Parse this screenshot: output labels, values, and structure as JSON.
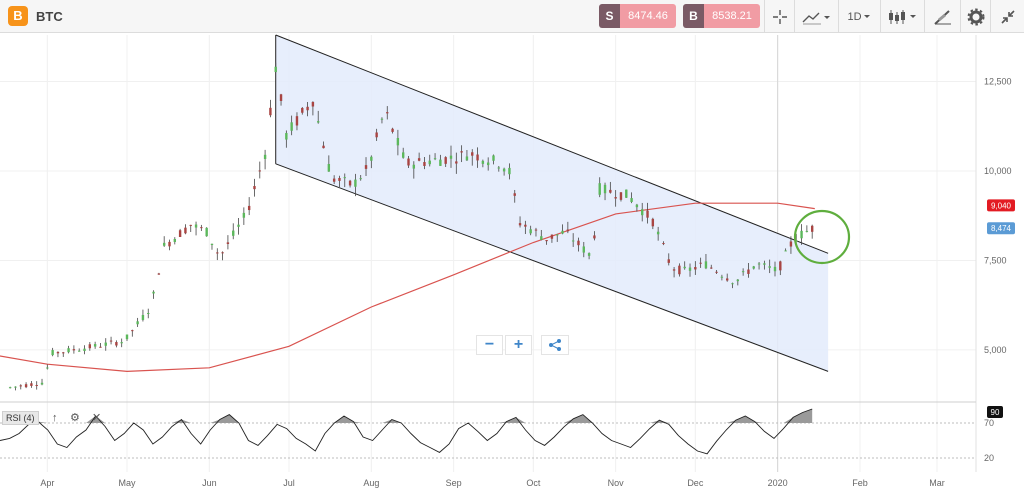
{
  "header": {
    "symbol": "BTC",
    "logo_glyph": "B",
    "sell_label": "S",
    "sell_price": "8474.46",
    "buy_label": "B",
    "buy_price": "8538.21",
    "interval": "1D",
    "icons": [
      "crosshair-icon",
      "line-chart-icon",
      "candlestick-icon",
      "drawing-tools-icon",
      "gear-icon",
      "collapse-icon"
    ]
  },
  "chart_controls": {
    "zoom_out": "−",
    "zoom_in": "+",
    "share_icon": "share-icon"
  },
  "rsi": {
    "label": "RSI (4)",
    "controls": [
      "↑",
      "⚙",
      "✕"
    ],
    "current_label": "90",
    "levels": [
      70,
      20
    ]
  },
  "colors": {
    "sell": "#7a5a65",
    "sell_price_bg": "#f19ca4",
    "up_candle": "#5cb85c",
    "down_candle": "#a94442",
    "ma_line": "#d9534f",
    "channel_fill": "#e3ebfb",
    "circle": "#5fae3e",
    "price_badge": "#5b9bd5",
    "ma_badge": "#e31b23"
  },
  "chart_data": {
    "type": "candlestick",
    "x_ticks": [
      "Apr",
      "May",
      "Jun",
      "Jul",
      "Aug",
      "Sep",
      "Oct",
      "Nov",
      "Dec",
      "2020",
      "Feb",
      "Mar"
    ],
    "y_ticks": [
      "12,500",
      "10,000",
      "7,500",
      "5,000"
    ],
    "ylim": [
      3600,
      13800
    ],
    "current_price_label": "8,474",
    "ma_label": "9,040",
    "price_path": [
      [
        "2019-03-18",
        3950
      ],
      [
        "2019-03-31",
        4100
      ],
      [
        "2019-04-02",
        4900
      ],
      [
        "2019-04-15",
        5050
      ],
      [
        "2019-04-30",
        5250
      ],
      [
        "2019-05-10",
        6200
      ],
      [
        "2019-05-15",
        7900
      ],
      [
        "2019-05-25",
        8500
      ],
      [
        "2019-05-31",
        8300
      ],
      [
        "2019-06-05",
        7600
      ],
      [
        "2019-06-15",
        8800
      ],
      [
        "2019-06-22",
        10500
      ],
      [
        "2019-06-26",
        12900
      ],
      [
        "2019-06-30",
        11000
      ],
      [
        "2019-07-10",
        12000
      ],
      [
        "2019-07-17",
        9800
      ],
      [
        "2019-07-25",
        9600
      ],
      [
        "2019-07-31",
        10100
      ],
      [
        "2019-08-06",
        11700
      ],
      [
        "2019-08-14",
        10200
      ],
      [
        "2019-08-25",
        10300
      ],
      [
        "2019-09-03",
        10400
      ],
      [
        "2019-09-07",
        10500
      ],
      [
        "2019-09-19",
        10200
      ],
      [
        "2019-09-23",
        9900
      ],
      [
        "2019-09-25",
        8600
      ],
      [
        "2019-10-06",
        8100
      ],
      [
        "2019-10-13",
        8300
      ],
      [
        "2019-10-23",
        7600
      ],
      [
        "2019-10-26",
        9500
      ],
      [
        "2019-11-06",
        9300
      ],
      [
        "2019-11-15",
        8600
      ],
      [
        "2019-11-22",
        7300
      ],
      [
        "2019-11-27",
        7200
      ],
      [
        "2019-12-05",
        7400
      ],
      [
        "2019-12-16",
        6900
      ],
      [
        "2019-12-24",
        7400
      ],
      [
        "2020-01-01",
        7200
      ],
      [
        "2020-01-07",
        8100
      ],
      [
        "2020-01-14",
        8400
      ]
    ],
    "ma_path": [
      [
        "2019-03-01",
        5000
      ],
      [
        "2019-04-01",
        4600
      ],
      [
        "2019-05-01",
        4400
      ],
      [
        "2019-06-01",
        4500
      ],
      [
        "2019-07-01",
        5100
      ],
      [
        "2019-08-01",
        6200
      ],
      [
        "2019-09-01",
        7100
      ],
      [
        "2019-10-01",
        8000
      ],
      [
        "2019-11-01",
        8800
      ],
      [
        "2019-12-01",
        9100
      ],
      [
        "2020-01-01",
        9100
      ],
      [
        "2020-01-15",
        8950
      ]
    ],
    "channel": {
      "upper": [
        [
          "2019-06-26",
          13800
        ],
        [
          "2020-01-20",
          7700
        ]
      ],
      "lower": [
        [
          "2019-06-26",
          10200
        ],
        [
          "2020-01-20",
          4400
        ]
      ]
    },
    "rsi_values": [
      45,
      48,
      55,
      68,
      72,
      60,
      40,
      35,
      50,
      60,
      80,
      65,
      45,
      55,
      70,
      60,
      40,
      50,
      65,
      75,
      55,
      40,
      60,
      75,
      82,
      70,
      45,
      38,
      52,
      68,
      62,
      48,
      40,
      30,
      55,
      70,
      80,
      72,
      50,
      45,
      60,
      75,
      70,
      55,
      42,
      35,
      28,
      40,
      62,
      70,
      58,
      45,
      55,
      72,
      78,
      60,
      45,
      38,
      50,
      64,
      76,
      82,
      70,
      55,
      45,
      40,
      35,
      48,
      62,
      74,
      68,
      52,
      40,
      30,
      26,
      44,
      60,
      74,
      80,
      72,
      58,
      48,
      62,
      78,
      85,
      90
    ]
  }
}
